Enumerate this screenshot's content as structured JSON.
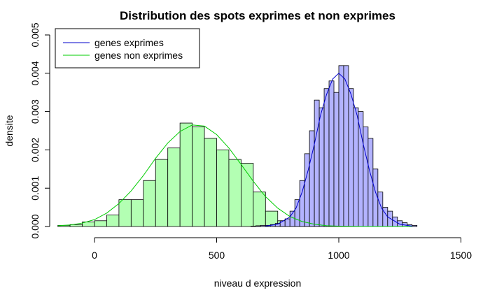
{
  "chart_data": {
    "type": "bar",
    "title": "Distribution des spots exprimes et non exprimes",
    "xlabel": "niveau d expression",
    "ylabel": "densite",
    "xlim": [
      -150,
      1500
    ],
    "ylim": [
      0,
      0.0052
    ],
    "x_ticks": [
      0,
      500,
      1000,
      1500
    ],
    "x_tick_labels": [
      "0",
      "500",
      "1000",
      "1500"
    ],
    "y_ticks": [
      0,
      0.001,
      0.002,
      0.003,
      0.004,
      0.005
    ],
    "y_tick_labels": [
      "0.000",
      "0.001",
      "0.002",
      "0.003",
      "0.004",
      "0.005"
    ],
    "grid": false,
    "legend": {
      "placement": "top-left",
      "entries": [
        {
          "label": "genes exprimes",
          "color": "#0000cc"
        },
        {
          "label": "genes non exprimes",
          "color": "#00cc00"
        }
      ]
    },
    "series": [
      {
        "name": "genes non exprimes",
        "histogram_fill": "#b3ffb3",
        "curve_color": "#00cc00",
        "bin_width": 50,
        "bins_start": [
          -150,
          -100,
          -50,
          0,
          50,
          100,
          150,
          200,
          250,
          300,
          350,
          400,
          450,
          500,
          550,
          600,
          650,
          700,
          750,
          800,
          850,
          900
        ],
        "density": [
          3e-05,
          5e-05,
          0.00012,
          0.00015,
          0.0003,
          0.0007,
          0.0007,
          0.0012,
          0.00175,
          0.00205,
          0.0027,
          0.0026,
          0.0023,
          0.002,
          0.00175,
          0.00165,
          0.0009,
          0.0004,
          0.00015,
          0.0001,
          3e-05,
          1e-05
        ],
        "curve_x": [
          -150,
          -100,
          -50,
          0,
          50,
          100,
          150,
          200,
          250,
          300,
          350,
          400,
          450,
          500,
          550,
          600,
          650,
          700,
          750,
          800,
          850,
          900,
          950,
          1000,
          1100,
          1200,
          1300
        ],
        "curve_y": [
          2e-05,
          4e-05,
          9e-05,
          0.00018,
          0.00035,
          0.0006,
          0.00093,
          0.00133,
          0.00178,
          0.00218,
          0.00248,
          0.00265,
          0.00262,
          0.0024,
          0.00205,
          0.00162,
          0.00118,
          0.00078,
          0.00048,
          0.00026,
          0.00013,
          6e-05,
          2e-05,
          1e-05,
          0,
          0,
          0
        ]
      },
      {
        "name": "genes exprimes",
        "histogram_fill": "#b3b3ff",
        "curve_color": "#0000cc",
        "bin_width": 20,
        "bins_start": [
          640,
          660,
          680,
          700,
          720,
          740,
          760,
          780,
          800,
          820,
          840,
          860,
          880,
          900,
          920,
          940,
          960,
          980,
          1000,
          1020,
          1040,
          1060,
          1080,
          1100,
          1120,
          1140,
          1160,
          1180,
          1200,
          1220,
          1240,
          1260,
          1280,
          1300
        ],
        "density": [
          1e-05,
          2e-05,
          3e-05,
          3e-05,
          5e-05,
          8e-05,
          0.00015,
          0.0002,
          0.0004,
          0.0007,
          0.0012,
          0.0019,
          0.0025,
          0.0033,
          0.0031,
          0.0036,
          0.0038,
          0.0035,
          0.0042,
          0.0042,
          0.0036,
          0.0031,
          0.003,
          0.0026,
          0.0023,
          0.0015,
          0.0009,
          0.0005,
          0.0004,
          0.00025,
          0.00015,
          0.0001,
          5e-05,
          3e-05
        ],
        "curve_x": [
          700,
          750,
          800,
          825,
          850,
          875,
          900,
          925,
          950,
          975,
          1000,
          1025,
          1050,
          1075,
          1100,
          1125,
          1150,
          1175,
          1200,
          1250,
          1300
        ],
        "curve_y": [
          1e-05,
          6e-05,
          0.00025,
          0.00048,
          0.0009,
          0.00148,
          0.00215,
          0.0029,
          0.00345,
          0.00385,
          0.004,
          0.00385,
          0.00345,
          0.0029,
          0.00215,
          0.00148,
          0.0009,
          0.00048,
          0.00025,
          6e-05,
          1e-05
        ]
      }
    ]
  }
}
